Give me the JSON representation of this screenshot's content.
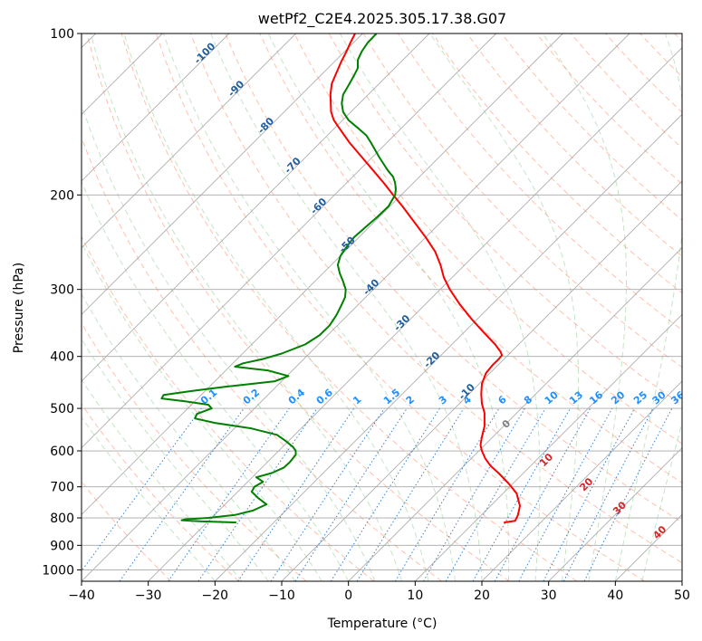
{
  "chart_data": {
    "type": "line",
    "title": "wetPf2_C2E4.2025.305.17.38.G07",
    "xlabel": "Temperature (°C)",
    "ylabel": "Pressure (hPa)",
    "xlim": [
      -40,
      50
    ],
    "ylim": [
      1050,
      100
    ],
    "y_scale": "log",
    "grid": true,
    "x_ticks": [
      -40,
      -30,
      -20,
      -10,
      0,
      10,
      20,
      30,
      40,
      50
    ],
    "y_ticks": [
      100,
      200,
      300,
      400,
      500,
      600,
      700,
      800,
      900,
      1000
    ],
    "skew": true,
    "series": [
      {
        "color": "#ff0000",
        "points": [
          [
            816,
            23.3
          ],
          [
            810,
            25.0
          ],
          [
            790,
            25.4
          ],
          [
            760,
            25.7
          ],
          [
            720,
            25.2
          ],
          [
            690,
            24.0
          ],
          [
            660,
            22.5
          ],
          [
            640,
            21.3
          ],
          [
            620,
            20.5
          ],
          [
            600,
            20.0
          ],
          [
            585,
            19.8
          ],
          [
            565,
            20.0
          ],
          [
            540,
            20.4
          ],
          [
            510,
            20.4
          ],
          [
            490,
            20.0
          ],
          [
            470,
            19.9
          ],
          [
            450,
            20.0
          ],
          [
            430,
            20.6
          ],
          [
            415,
            21.6
          ],
          [
            405,
            22.5
          ],
          [
            398,
            23.0
          ],
          [
            392,
            22.8
          ],
          [
            380,
            22.0
          ],
          [
            360,
            20.2
          ],
          [
            340,
            18.4
          ],
          [
            320,
            16.7
          ],
          [
            300,
            15.2
          ],
          [
            285,
            14.3
          ],
          [
            270,
            13.8
          ],
          [
            255,
            13.0
          ],
          [
            240,
            11.6
          ],
          [
            225,
            9.9
          ],
          [
            210,
            8.1
          ],
          [
            200,
            6.7
          ],
          [
            190,
            5.3
          ],
          [
            180,
            3.7
          ],
          [
            170,
            2.0
          ],
          [
            160,
            0.2
          ],
          [
            150,
            -1.4
          ],
          [
            145,
            -2.2
          ],
          [
            140,
            -2.6
          ],
          [
            130,
            -2.7
          ],
          [
            124,
            -2.5
          ],
          [
            120,
            -2.0
          ],
          [
            113,
            -1.1
          ],
          [
            108,
            -0.3
          ],
          [
            104,
            0.3
          ],
          [
            100,
            1.0
          ]
        ]
      },
      {
        "color": "#008000",
        "points": [
          [
            816,
            -16.8
          ],
          [
            812,
            -22.0
          ],
          [
            808,
            -25.0
          ],
          [
            805,
            -24.4
          ],
          [
            800,
            -21.0
          ],
          [
            790,
            -17.0
          ],
          [
            775,
            -14.3
          ],
          [
            755,
            -12.3
          ],
          [
            735,
            -13.5
          ],
          [
            715,
            -14.5
          ],
          [
            700,
            -14.1
          ],
          [
            685,
            -12.8
          ],
          [
            672,
            -13.8
          ],
          [
            660,
            -11.5
          ],
          [
            645,
            -9.7
          ],
          [
            630,
            -8.8
          ],
          [
            610,
            -7.9
          ],
          [
            600,
            -7.9
          ],
          [
            590,
            -8.3
          ],
          [
            575,
            -9.4
          ],
          [
            560,
            -10.7
          ],
          [
            545,
            -14.5
          ],
          [
            532,
            -20.0
          ],
          [
            522,
            -23.0
          ],
          [
            512,
            -22.7
          ],
          [
            500,
            -20.5
          ],
          [
            492,
            -21.0
          ],
          [
            485,
            -24.5
          ],
          [
            479,
            -28.0
          ],
          [
            472,
            -27.7
          ],
          [
            464,
            -23.5
          ],
          [
            455,
            -18.0
          ],
          [
            445,
            -11.0
          ],
          [
            435,
            -9.0
          ],
          [
            425,
            -12.0
          ],
          [
            418,
            -17.0
          ],
          [
            412,
            -15.8
          ],
          [
            405,
            -13.0
          ],
          [
            395,
            -10.0
          ],
          [
            380,
            -6.5
          ],
          [
            365,
            -4.3
          ],
          [
            350,
            -2.8
          ],
          [
            335,
            -1.8
          ],
          [
            320,
            -1.0
          ],
          [
            310,
            -0.5
          ],
          [
            300,
            -0.4
          ],
          [
            290,
            -0.8
          ],
          [
            280,
            -1.3
          ],
          [
            270,
            -1.6
          ],
          [
            260,
            -1.2
          ],
          [
            250,
            -0.3
          ],
          [
            240,
            0.8
          ],
          [
            230,
            2.5
          ],
          [
            220,
            4.3
          ],
          [
            210,
            6.0
          ],
          [
            200,
            7.0
          ],
          [
            195,
            7.1
          ],
          [
            190,
            7.0
          ],
          [
            185,
            6.7
          ],
          [
            180,
            5.9
          ],
          [
            170,
            4.6
          ],
          [
            160,
            3.4
          ],
          [
            155,
            2.7
          ],
          [
            150,
            1.4
          ],
          [
            145,
            0.0
          ],
          [
            140,
            -0.8
          ],
          [
            135,
            -1.0
          ],
          [
            130,
            -0.8
          ],
          [
            125,
            0.0
          ],
          [
            120,
            0.8
          ],
          [
            116,
            1.4
          ],
          [
            112,
            1.4
          ],
          [
            108,
            2.0
          ],
          [
            104,
            2.9
          ],
          [
            100,
            4.2
          ]
        ]
      }
    ],
    "dry_adiabat_labels": [
      "-100",
      "-90",
      "-80",
      "-70",
      "-60",
      "-50",
      "-40",
      "-30",
      "-20",
      "-10"
    ],
    "mixing_ratio_labels": [
      "0.1",
      "0.2",
      "0.4",
      "0.6",
      "1",
      "1.5",
      "2",
      "3",
      "4",
      "6",
      "8",
      "10",
      "13",
      "16",
      "20",
      "25",
      "30",
      "36"
    ],
    "moist_adiabat_labels": [
      "0",
      "10",
      "20",
      "30",
      "40"
    ]
  },
  "colors": {
    "temperature": "#ff0000",
    "dewpoint": "#008000",
    "dry_adiabat": "#ff8c69",
    "dry_adiabat_label": "#1f5f9f",
    "moist_adiabat": "#7cc47c",
    "moist_adiabat_label": "#d62728",
    "mixing_ratio": "#1f77d4",
    "mixing_ratio_label": "#1e90ff",
    "isotherm": "#a0a0a0",
    "isobar": "#a8a8a8"
  }
}
